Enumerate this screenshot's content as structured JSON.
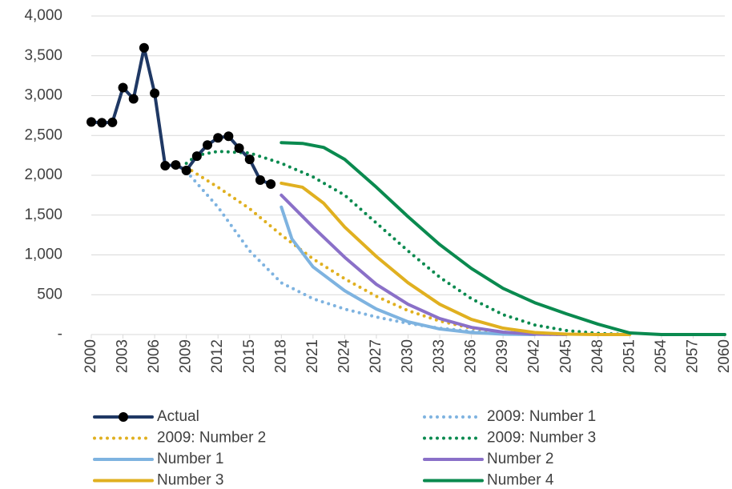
{
  "chart_data": {
    "type": "line",
    "xlim": [
      2000,
      2060
    ],
    "xticks": [
      2000,
      2003,
      2006,
      2009,
      2012,
      2015,
      2018,
      2021,
      2024,
      2027,
      2030,
      2033,
      2036,
      2039,
      2042,
      2045,
      2048,
      2051,
      2054,
      2057,
      2060
    ],
    "ylim": [
      0,
      4000
    ],
    "yticks": [
      {
        "value": 0,
        "label": "-"
      },
      500,
      {
        "value": 1000,
        "label": "1,000"
      },
      {
        "value": 1500,
        "label": "1,500"
      },
      {
        "value": 2000,
        "label": "2,000"
      },
      {
        "value": 2500,
        "label": "2,500"
      },
      {
        "value": 3000,
        "label": "3,000"
      },
      {
        "value": 3500,
        "label": "3,500"
      },
      {
        "value": 4000,
        "label": "4,000"
      }
    ],
    "grid": true,
    "series": [
      {
        "name": "Actual",
        "color": "#1f3864",
        "style": "solid",
        "marker": "circle",
        "x": [
          2000,
          2001,
          2002,
          2003,
          2004,
          2005,
          2006,
          2007,
          2008,
          2009,
          2010,
          2011,
          2012,
          2013,
          2014,
          2015,
          2016,
          2017
        ],
        "values": [
          2670,
          2660,
          2665,
          3100,
          2960,
          3600,
          3030,
          2120,
          2130,
          2060,
          2240,
          2380,
          2470,
          2490,
          2340,
          2200,
          1940,
          1890
        ]
      },
      {
        "name": "2009: Number 1",
        "color": "#7eb3e0",
        "style": "dotted",
        "x": [
          2009,
          2012,
          2015,
          2018,
          2021,
          2024,
          2027,
          2030,
          2033,
          2036,
          2039,
          2042
        ],
        "values": [
          2050,
          1600,
          1050,
          650,
          450,
          320,
          220,
          140,
          80,
          40,
          15,
          0
        ]
      },
      {
        "name": "2009: Number 2",
        "color": "#e0b020",
        "style": "dotted",
        "x": [
          2009,
          2012,
          2015,
          2018,
          2021,
          2024,
          2027,
          2030,
          2033,
          2036,
          2039,
          2042,
          2045
        ],
        "values": [
          2100,
          1850,
          1580,
          1250,
          950,
          700,
          480,
          300,
          170,
          80,
          30,
          5,
          0
        ]
      },
      {
        "name": "2009: Number 3",
        "color": "#0a8a4f",
        "style": "dotted",
        "x": [
          2009,
          2010,
          2012,
          2015,
          2018,
          2021,
          2024,
          2027,
          2030,
          2033,
          2036,
          2039,
          2042,
          2045,
          2048,
          2051
        ],
        "values": [
          2150,
          2250,
          2300,
          2280,
          2150,
          1980,
          1750,
          1400,
          1050,
          720,
          450,
          250,
          120,
          50,
          15,
          0
        ]
      },
      {
        "name": "Number 1",
        "color": "#7eb3e0",
        "style": "solid",
        "x": [
          2018,
          2019,
          2021,
          2024,
          2027,
          2030,
          2033,
          2036,
          2039,
          2042
        ],
        "values": [
          1600,
          1200,
          850,
          550,
          320,
          160,
          70,
          25,
          5,
          0
        ]
      },
      {
        "name": "Number 2",
        "color": "#8a70c8",
        "style": "solid",
        "x": [
          2018,
          2021,
          2024,
          2027,
          2030,
          2033,
          2036,
          2039,
          2042,
          2045
        ],
        "values": [
          1750,
          1350,
          970,
          630,
          380,
          200,
          90,
          30,
          5,
          0
        ]
      },
      {
        "name": "Number 3",
        "color": "#e0b020",
        "style": "solid",
        "x": [
          2018,
          2020,
          2022,
          2024,
          2027,
          2030,
          2033,
          2036,
          2039,
          2042,
          2045,
          2048,
          2051
        ],
        "values": [
          1900,
          1850,
          1650,
          1350,
          980,
          650,
          380,
          190,
          80,
          25,
          5,
          0,
          0
        ]
      },
      {
        "name": "Number 4",
        "color": "#0a8a4f",
        "style": "solid",
        "x": [
          2018,
          2020,
          2022,
          2024,
          2027,
          2030,
          2033,
          2036,
          2039,
          2042,
          2045,
          2048,
          2051,
          2054,
          2060
        ],
        "values": [
          2410,
          2400,
          2350,
          2200,
          1850,
          1480,
          1130,
          830,
          580,
          400,
          260,
          130,
          20,
          0,
          0
        ]
      }
    ]
  }
}
